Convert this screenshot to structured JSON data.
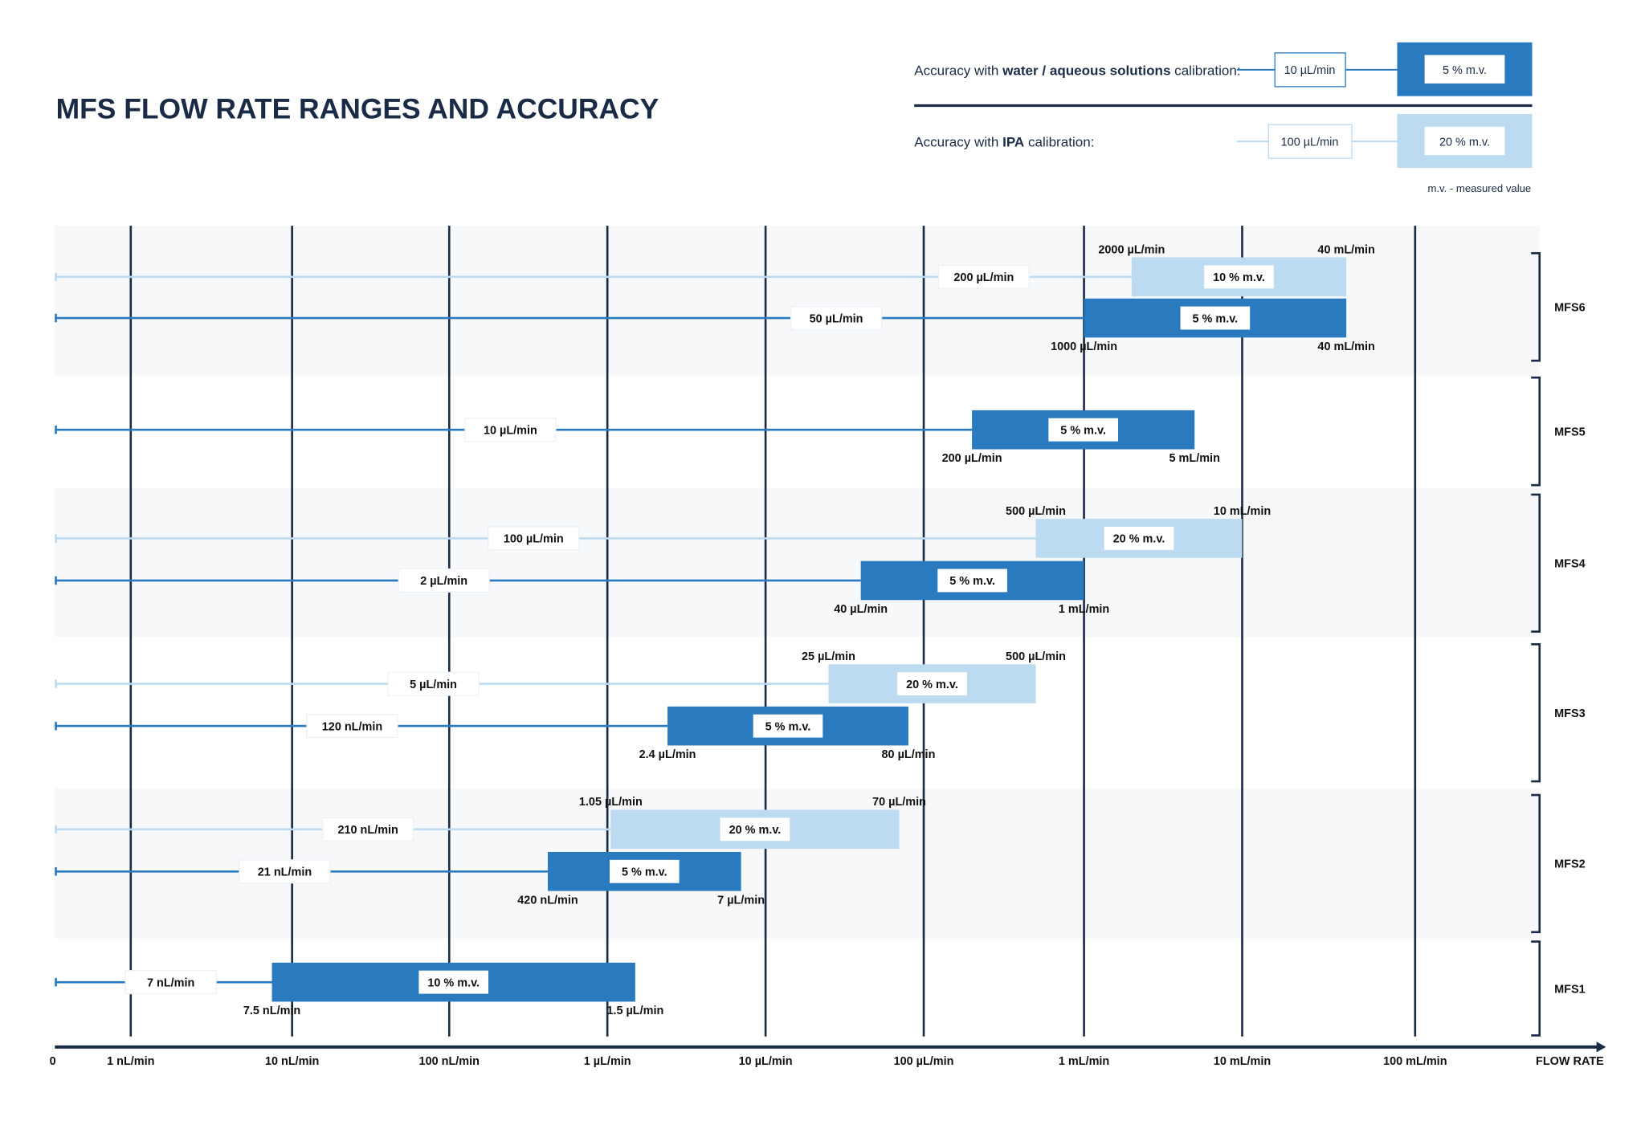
{
  "chart_data": {
    "type": "bar",
    "title": "MFS FLOW RATE RANGES AND ACCURACY",
    "xlabel": "FLOW RATE",
    "x_scale": "log",
    "x_unit": "µL/min",
    "x_ticks": [
      "0",
      "1 nL/min",
      "10 nL/min",
      "100 nL/min",
      "1 µL/min",
      "10 µL/min",
      "100 µL/min",
      "1 mL/min",
      "10 mL/min",
      "100 mL/min"
    ],
    "grid": true,
    "colors": {
      "water": "#2a7abf",
      "ipa": "#bcdaf0",
      "axis": "#1a2b45",
      "band": "#f6f8fa"
    },
    "legend": {
      "placement": "top-right",
      "water": {
        "prefix": "Accuracy with ",
        "bold": "water / aqueous solutions",
        "suffix": " calibration:",
        "range_label": "10 µL/min",
        "accuracy": "5 % m.v."
      },
      "ipa": {
        "prefix": "Accuracy with ",
        "bold": "IPA",
        "suffix": " calibration:",
        "range_label": "100 µL/min",
        "accuracy": "20 % m.v."
      },
      "note": "m.v. - measured value"
    },
    "models": [
      {
        "name": "MFS6",
        "series": [
          {
            "calibration": "ipa",
            "line_label": "200 µL/min",
            "min": 2000,
            "max": 40000,
            "min_label": "2000  µL/min",
            "max_label": "40 mL/min",
            "accuracy": "10 % m.v."
          },
          {
            "calibration": "water",
            "line_label": "50 µL/min",
            "min": 1000,
            "max": 40000,
            "min_label": "1000 µL/min",
            "max_label": "40 mL/min",
            "accuracy": "5 % m.v."
          }
        ]
      },
      {
        "name": "MFS5",
        "series": [
          {
            "calibration": "water",
            "line_label": "10 µL/min",
            "min": 200,
            "max": 5000,
            "min_label": "200 µL/min",
            "max_label": "5 mL/min",
            "accuracy": "5 % m.v."
          }
        ]
      },
      {
        "name": "MFS4",
        "series": [
          {
            "calibration": "ipa",
            "line_label": "100 µL/min",
            "min": 500,
            "max": 10000,
            "min_label": "500  µL/min",
            "max_label": "10 mL/min",
            "accuracy": "20 % m.v."
          },
          {
            "calibration": "water",
            "line_label": "2 µL/min",
            "min": 40,
            "max": 1000,
            "min_label": "40 µL/min",
            "max_label": "1 mL/min",
            "accuracy": "5 % m.v."
          }
        ]
      },
      {
        "name": "MFS3",
        "series": [
          {
            "calibration": "ipa",
            "line_label": "5 µL/min",
            "min": 25,
            "max": 500,
            "min_label": "25 µL/min",
            "max_label": "500 µL/min",
            "accuracy": "20 % m.v."
          },
          {
            "calibration": "water",
            "line_label": "120 nL/min",
            "min": 2.4,
            "max": 80,
            "min_label": "2.4 µL/min",
            "max_label": "80 µL/min",
            "accuracy": "5 % m.v."
          }
        ]
      },
      {
        "name": "MFS2",
        "series": [
          {
            "calibration": "ipa",
            "line_label": "210 nL/min",
            "min": 1.05,
            "max": 70,
            "min_label": "1.05 µL/min",
            "max_label": "70 µL/min",
            "accuracy": "20 % m.v."
          },
          {
            "calibration": "water",
            "line_label": "21 nL/min",
            "min": 0.42,
            "max": 7,
            "min_label": "420 nL/min",
            "max_label": "7 µL/min",
            "accuracy": "5 % m.v."
          }
        ]
      },
      {
        "name": "MFS1",
        "series": [
          {
            "calibration": "water",
            "line_label": "7 nL/min",
            "min": 0.0075,
            "max": 1.5,
            "min_label": "7.5 nL/min",
            "max_label": "1.5 µL/min",
            "accuracy": "10 % m.v."
          }
        ]
      }
    ]
  }
}
